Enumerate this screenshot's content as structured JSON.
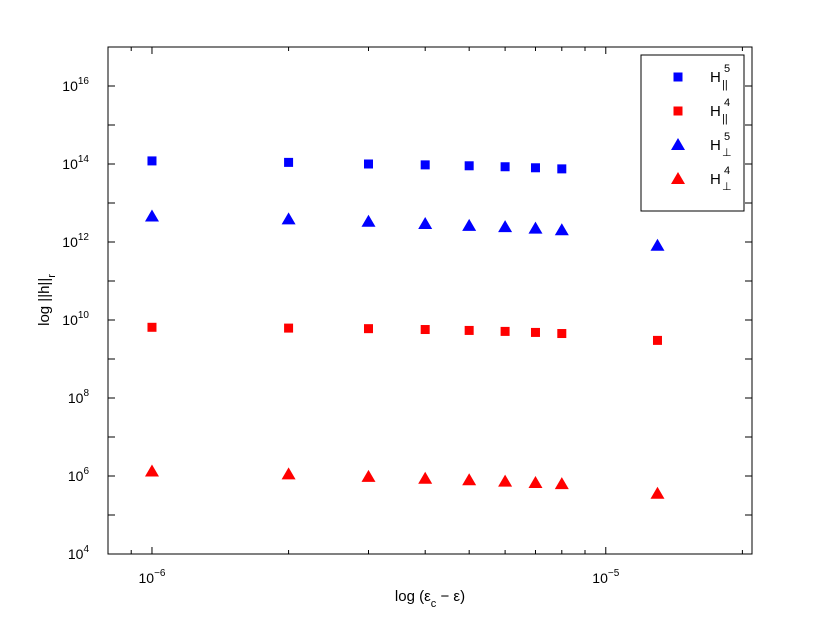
{
  "chart_data": {
    "type": "scatter",
    "x_scale": "log",
    "y_scale": "log",
    "xlabel_main": "log (ε",
    "xlabel_sub": "c",
    "xlabel_tail": " − ε)",
    "ylabel_main": "log ||h||",
    "ylabel_sub": "r",
    "xlim": [
      8e-07,
      2.1e-05
    ],
    "ylim": [
      10000,
      1e+17
    ],
    "x_ticks": [
      {
        "value": 1e-06,
        "base": "10",
        "exp": "−6"
      },
      {
        "value": 1e-05,
        "base": "10",
        "exp": "−5"
      }
    ],
    "y_ticks": [
      {
        "value": 10000.0,
        "base": "10",
        "exp": "4"
      },
      {
        "value": 1000000.0,
        "base": "10",
        "exp": "6"
      },
      {
        "value": 100000000.0,
        "base": "10",
        "exp": "8"
      },
      {
        "value": 10000000000.0,
        "base": "10",
        "exp": "10"
      },
      {
        "value": 1000000000000.0,
        "base": "10",
        "exp": "12"
      },
      {
        "value": 100000000000000.0,
        "base": "10",
        "exp": "14"
      },
      {
        "value": 1e+16,
        "base": "10",
        "exp": "16"
      }
    ],
    "legend_position": "top-right",
    "grid": false,
    "series": [
      {
        "name_base": "H",
        "name_sup": "5",
        "name_sub": "||",
        "marker": "square",
        "color": "#0000ff",
        "x": [
          1e-06,
          2e-06,
          3e-06,
          4e-06,
          5e-06,
          6e-06,
          7e-06,
          8e-06
        ],
        "y": [
          120000000000000.0,
          110000000000000.0,
          100000000000000.0,
          95000000000000.0,
          90000000000000.0,
          85000000000000.0,
          80000000000000.0,
          75000000000000.0
        ]
      },
      {
        "name_base": "H",
        "name_sup": "4",
        "name_sub": "||",
        "marker": "square",
        "color": "#ff0000",
        "x": [
          1e-06,
          2e-06,
          3e-06,
          4e-06,
          5e-06,
          6e-06,
          7e-06,
          8e-06,
          1.3e-05
        ],
        "y": [
          6500000000.0,
          6200000000.0,
          6000000000.0,
          5700000000.0,
          5400000000.0,
          5100000000.0,
          4800000000.0,
          4500000000.0,
          3000000000.0
        ]
      },
      {
        "name_base": "H",
        "name_sup": "5",
        "name_sub": "⊥",
        "marker": "triangle",
        "color": "#0000ff",
        "x": [
          1e-06,
          2e-06,
          3e-06,
          4e-06,
          5e-06,
          6e-06,
          7e-06,
          8e-06,
          1.3e-05
        ],
        "y": [
          4500000000000.0,
          3800000000000.0,
          3300000000000.0,
          2900000000000.0,
          2600000000000.0,
          2400000000000.0,
          2200000000000.0,
          2000000000000.0,
          800000000000.0
        ]
      },
      {
        "name_base": "H",
        "name_sup": "4",
        "name_sub": "⊥",
        "marker": "triangle",
        "color": "#ff0000",
        "x": [
          1e-06,
          2e-06,
          3e-06,
          4e-06,
          5e-06,
          6e-06,
          7e-06,
          8e-06,
          1.3e-05
        ],
        "y": [
          1300000.0,
          1100000.0,
          950000.0,
          850000.0,
          780000.0,
          720000.0,
          660000.0,
          620000.0,
          350000.0
        ]
      }
    ]
  }
}
